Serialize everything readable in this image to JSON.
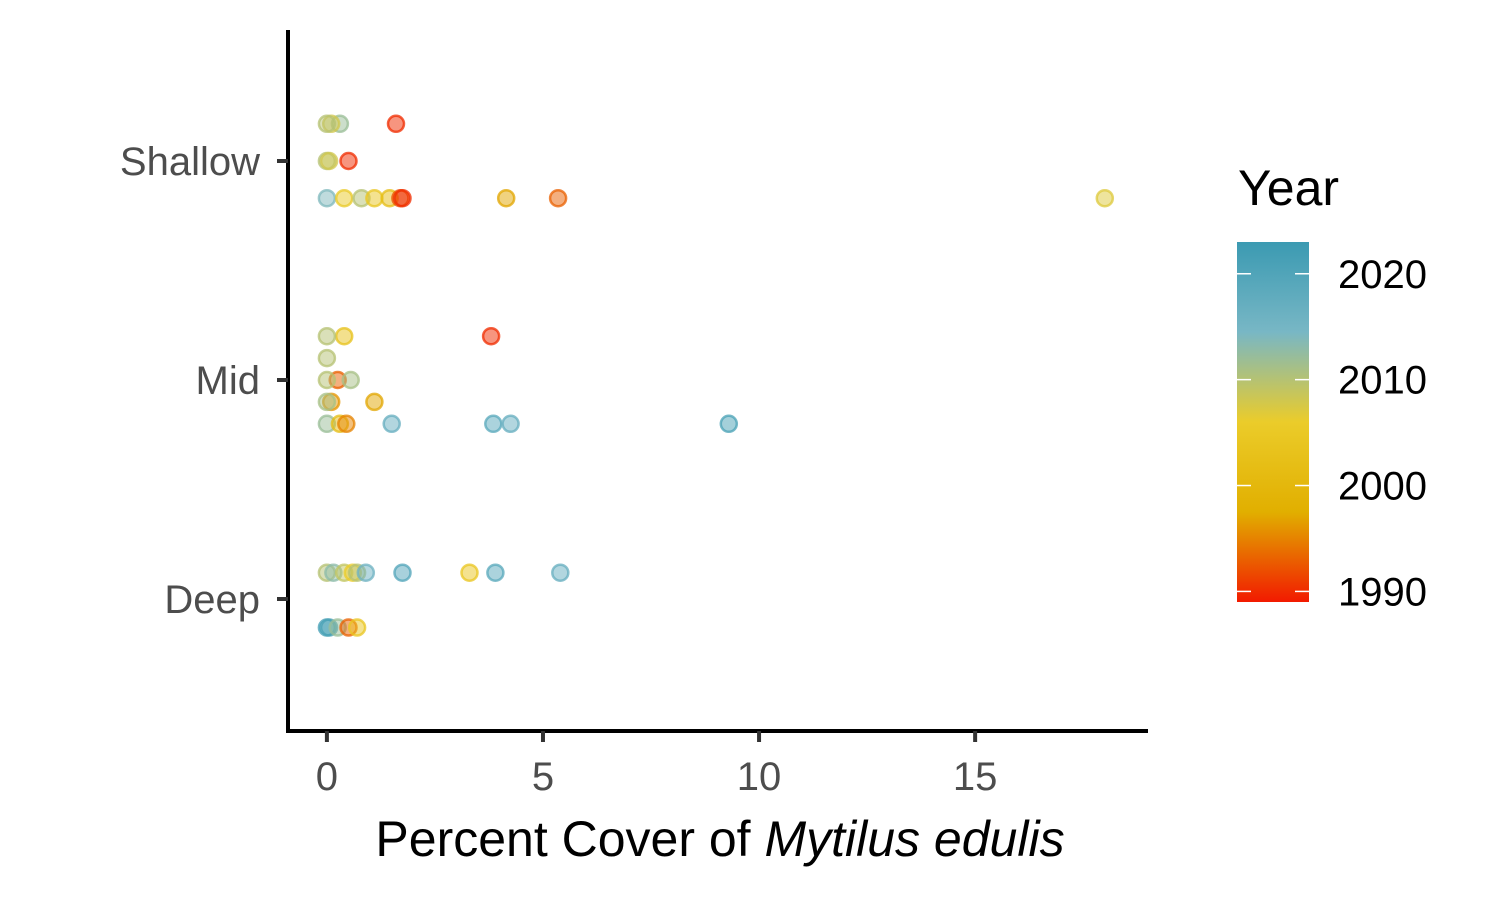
{
  "chart_data": {
    "type": "scatter",
    "xlabel_prefix": "Percent Cover of ",
    "xlabel_species": "Mytilus edulis",
    "xlim": [
      -0.9,
      19.0
    ],
    "x_ticks": [
      0,
      5,
      10,
      15
    ],
    "categories": [
      "Shallow",
      "Mid",
      "Deep"
    ],
    "legend": {
      "title": "Year",
      "placement": "right",
      "range": [
        1989,
        2023
      ],
      "ticks": [
        1990,
        2000,
        2010,
        2020
      ],
      "colors": [
        "#F21A00",
        "#E1AF00",
        "#EBCC2A",
        "#78B7C5",
        "#3B9AB2"
      ]
    },
    "point_alpha": 0.5,
    "points": [
      {
        "cat": "Shallow",
        "offset": 0.17,
        "x": 1.6,
        "year": 1990
      },
      {
        "cat": "Shallow",
        "offset": 0.17,
        "x": 0.3,
        "year": 2012
      },
      {
        "cat": "Shallow",
        "offset": 0.17,
        "x": 0.1,
        "year": 2008
      },
      {
        "cat": "Shallow",
        "offset": 0.17,
        "x": 0.0,
        "year": 2010
      },
      {
        "cat": "Shallow",
        "offset": 0.0,
        "x": 0.5,
        "year": 1990
      },
      {
        "cat": "Shallow",
        "offset": 0.0,
        "x": 0.0,
        "year": 2010
      },
      {
        "cat": "Shallow",
        "offset": 0.0,
        "x": 0.05,
        "year": 2008
      },
      {
        "cat": "Shallow",
        "offset": -0.17,
        "x": 0.0,
        "year": 2014
      },
      {
        "cat": "Shallow",
        "offset": -0.17,
        "x": 0.4,
        "year": 2005
      },
      {
        "cat": "Shallow",
        "offset": -0.17,
        "x": 0.8,
        "year": 2010
      },
      {
        "cat": "Shallow",
        "offset": -0.17,
        "x": 1.1,
        "year": 2004
      },
      {
        "cat": "Shallow",
        "offset": -0.17,
        "x": 1.45,
        "year": 2002
      },
      {
        "cat": "Shallow",
        "offset": -0.17,
        "x": 1.7,
        "year": 1992
      },
      {
        "cat": "Shallow",
        "offset": -0.17,
        "x": 1.75,
        "year": 1990
      },
      {
        "cat": "Shallow",
        "offset": -0.17,
        "x": 4.15,
        "year": 1997
      },
      {
        "cat": "Shallow",
        "offset": -0.17,
        "x": 5.35,
        "year": 1993
      },
      {
        "cat": "Shallow",
        "offset": -0.17,
        "x": 18.0,
        "year": 2007
      },
      {
        "cat": "Mid",
        "offset": 0.2,
        "x": 0.4,
        "year": 2003
      },
      {
        "cat": "Mid",
        "offset": 0.2,
        "x": 0.0,
        "year": 2010
      },
      {
        "cat": "Mid",
        "offset": 0.2,
        "x": 3.8,
        "year": 1990
      },
      {
        "cat": "Mid",
        "offset": 0.1,
        "x": 0.0,
        "year": 2010
      },
      {
        "cat": "Mid",
        "offset": 0.0,
        "x": 0.25,
        "year": 1993
      },
      {
        "cat": "Mid",
        "offset": 0.0,
        "x": 0.55,
        "year": 2011
      },
      {
        "cat": "Mid",
        "offset": 0.0,
        "x": 0.0,
        "year": 2010
      },
      {
        "cat": "Mid",
        "offset": -0.1,
        "x": 0.1,
        "year": 1996
      },
      {
        "cat": "Mid",
        "offset": -0.1,
        "x": 0.0,
        "year": 2011
      },
      {
        "cat": "Mid",
        "offset": -0.1,
        "x": 1.1,
        "year": 1997
      },
      {
        "cat": "Mid",
        "offset": -0.2,
        "x": 0.0,
        "year": 2012
      },
      {
        "cat": "Mid",
        "offset": -0.2,
        "x": 0.3,
        "year": 2002
      },
      {
        "cat": "Mid",
        "offset": -0.2,
        "x": 0.45,
        "year": 1995
      },
      {
        "cat": "Mid",
        "offset": -0.2,
        "x": 1.5,
        "year": 2017
      },
      {
        "cat": "Mid",
        "offset": -0.2,
        "x": 3.85,
        "year": 2019
      },
      {
        "cat": "Mid",
        "offset": -0.2,
        "x": 4.25,
        "year": 2017
      },
      {
        "cat": "Mid",
        "offset": -0.2,
        "x": 9.3,
        "year": 2021
      },
      {
        "cat": "Deep",
        "offset": 0.12,
        "x": 0.0,
        "year": 2010
      },
      {
        "cat": "Deep",
        "offset": 0.12,
        "x": 0.15,
        "year": 2013
      },
      {
        "cat": "Deep",
        "offset": 0.12,
        "x": 0.4,
        "year": 2009
      },
      {
        "cat": "Deep",
        "offset": 0.12,
        "x": 0.6,
        "year": 2006
      },
      {
        "cat": "Deep",
        "offset": 0.12,
        "x": 0.7,
        "year": 2010
      },
      {
        "cat": "Deep",
        "offset": 0.12,
        "x": 0.9,
        "year": 2016
      },
      {
        "cat": "Deep",
        "offset": 0.12,
        "x": 1.75,
        "year": 2020
      },
      {
        "cat": "Deep",
        "offset": 0.12,
        "x": 3.3,
        "year": 2004
      },
      {
        "cat": "Deep",
        "offset": 0.12,
        "x": 3.9,
        "year": 2019
      },
      {
        "cat": "Deep",
        "offset": 0.12,
        "x": 5.4,
        "year": 2017
      },
      {
        "cat": "Deep",
        "offset": -0.13,
        "x": 0.0,
        "year": 2022
      },
      {
        "cat": "Deep",
        "offset": -0.13,
        "x": 0.05,
        "year": 2021
      },
      {
        "cat": "Deep",
        "offset": -0.13,
        "x": 0.25,
        "year": 2012
      },
      {
        "cat": "Deep",
        "offset": -0.13,
        "x": 0.5,
        "year": 1993
      },
      {
        "cat": "Deep",
        "offset": -0.13,
        "x": 0.7,
        "year": 2004
      }
    ]
  }
}
